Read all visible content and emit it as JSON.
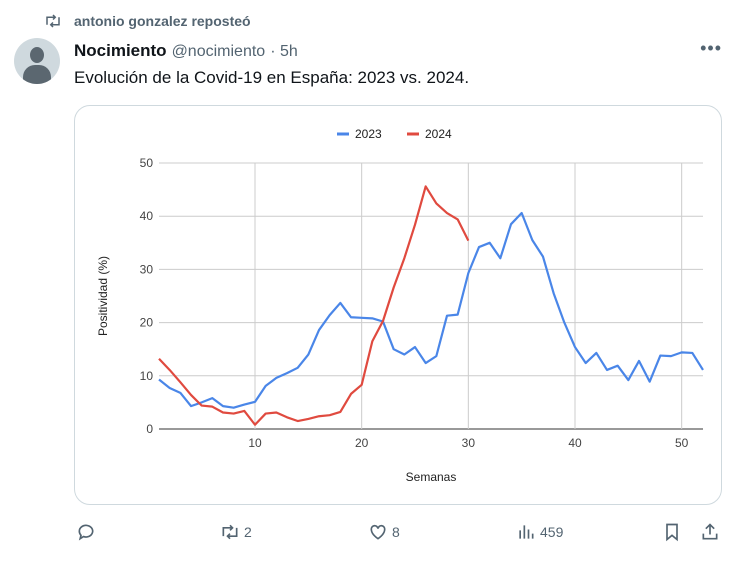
{
  "repost": {
    "icon": "repost-icon",
    "text": "antonio gonzalez reposteó"
  },
  "tweet": {
    "name": "Nocimiento",
    "handle": "@nocimiento",
    "time": "· 5h",
    "text": "Evolución de la Covid-19 en España: 2023 vs. 2024."
  },
  "actions": {
    "reply": "",
    "retweets": "2",
    "likes": "8",
    "views": "459"
  },
  "chart_data": {
    "type": "line",
    "title": "",
    "xlabel": "Semanas",
    "ylabel": "Positividad (%)",
    "xlim": [
      1,
      52
    ],
    "ylim": [
      0,
      50
    ],
    "xticks": [
      10,
      20,
      30,
      40,
      50
    ],
    "yticks": [
      0,
      10,
      20,
      30,
      40,
      50
    ],
    "legend": "top",
    "series": [
      {
        "name": "2023",
        "color": "#4a86e8",
        "values": [
          9.3,
          7.7,
          6.8,
          4.3,
          5.0,
          5.8,
          4.3,
          4.0,
          4.6,
          5.1,
          8.1,
          9.6,
          10.5,
          11.5,
          14.0,
          18.6,
          21.4,
          23.7,
          21.0,
          20.9,
          20.8,
          20.2,
          15.0,
          14.0,
          15.4,
          12.4,
          13.7,
          21.3,
          21.5,
          29.3,
          34.2,
          35.0,
          32.1,
          38.5,
          40.6,
          35.5,
          32.4,
          25.5,
          20.0,
          15.4,
          12.4,
          14.3,
          11.1,
          11.9,
          9.2,
          12.8,
          8.9,
          13.8,
          13.7,
          14.4,
          14.3,
          11.1
        ]
      },
      {
        "name": "2024",
        "color": "#e04a3f",
        "values": [
          13.2,
          11.1,
          8.8,
          6.4,
          4.4,
          4.2,
          3.1,
          2.9,
          3.4,
          0.8,
          2.9,
          3.1,
          2.2,
          1.5,
          1.9,
          2.4,
          2.6,
          3.2,
          6.6,
          8.3,
          16.5,
          20.3,
          26.6,
          32.1,
          38.4,
          45.6,
          42.4,
          40.6,
          39.4,
          35.4
        ]
      }
    ]
  }
}
